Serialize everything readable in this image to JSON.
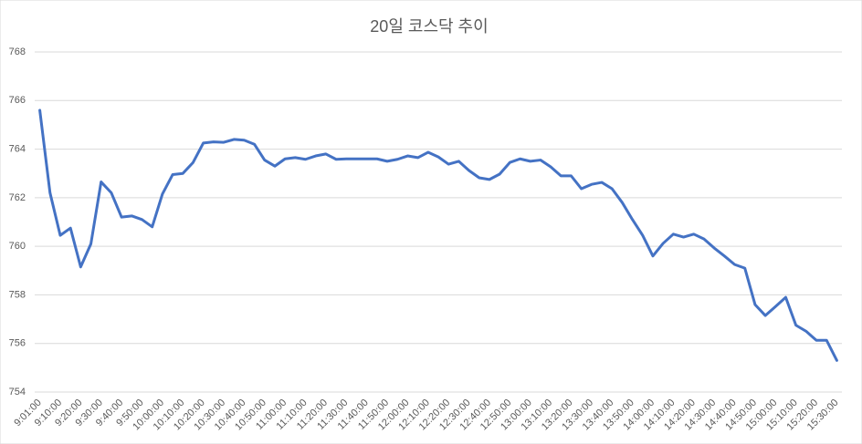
{
  "chart_data": {
    "type": "line",
    "title": "20일 코스닥 추이",
    "categories": [
      "9:01:00",
      null,
      "9:10:00",
      null,
      "9:20:00",
      null,
      "9:30:00",
      null,
      "9:40:00",
      null,
      "9:50:00",
      null,
      "10:00:00",
      null,
      "10:10:00",
      null,
      "10:20:00",
      null,
      "10:30:00",
      null,
      "10:40:00",
      null,
      "10:50:00",
      null,
      "11:00:00",
      null,
      "11:10:00",
      null,
      "11:20:00",
      null,
      "11:30:00",
      null,
      "11:40:00",
      null,
      "11:50:00",
      null,
      "12:00:00",
      null,
      "12:10:00",
      null,
      "12:20:00",
      null,
      "12:30:00",
      null,
      "12:40:00",
      null,
      "12:50:00",
      null,
      "13:00:00",
      null,
      "13:10:00",
      null,
      "13:20:00",
      null,
      "13:30:00",
      null,
      "13:40:00",
      null,
      "13:50:00",
      null,
      "14:00:00",
      null,
      "14:10:00",
      null,
      "14:20:00",
      null,
      "14:30:00",
      null,
      "14:40:00",
      null,
      "14:50:00",
      null,
      "15:00:00",
      null,
      "15:10:00",
      null,
      "15:20:00",
      null,
      "15:30:00"
    ],
    "series": [
      {
        "name": "코스닥",
        "color": "#4472c4",
        "values": [
          765.6,
          762.2,
          760.45,
          760.75,
          759.15,
          760.1,
          762.65,
          762.2,
          761.2,
          761.25,
          761.1,
          760.8,
          762.15,
          762.95,
          763.0,
          763.45,
          764.25,
          764.3,
          764.28,
          764.4,
          764.37,
          764.2,
          763.55,
          763.3,
          763.6,
          763.65,
          763.58,
          763.72,
          763.8,
          763.58,
          763.6,
          763.6,
          763.6,
          763.6,
          763.5,
          763.58,
          763.72,
          763.65,
          763.87,
          763.68,
          763.38,
          763.5,
          763.12,
          762.82,
          762.75,
          762.97,
          763.45,
          763.6,
          763.5,
          763.55,
          763.27,
          762.9,
          762.9,
          762.37,
          762.55,
          762.63,
          762.37,
          761.8,
          761.1,
          760.45,
          759.6,
          760.12,
          760.5,
          760.38,
          760.5,
          760.3,
          759.93,
          759.6,
          759.25,
          759.1,
          757.6,
          757.15,
          757.52,
          757.9,
          756.75,
          756.5,
          756.13,
          756.13,
          755.3
        ]
      }
    ],
    "ylim": [
      754,
      768
    ],
    "yticks": [
      754,
      756,
      758,
      760,
      762,
      764,
      766,
      768
    ],
    "grid": true
  }
}
